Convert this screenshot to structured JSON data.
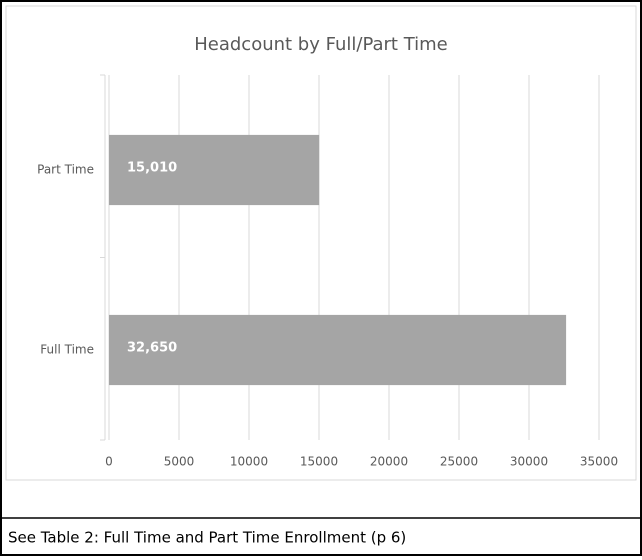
{
  "chart_data": {
    "type": "bar",
    "orientation": "horizontal",
    "title": "Headcount by Full/Part Time",
    "categories": [
      "Part Time",
      "Full Time"
    ],
    "values": [
      15010,
      32650
    ],
    "value_labels": [
      "15,010",
      "32,650"
    ],
    "color": "#a5a5a5",
    "xlim": [
      0,
      35000
    ],
    "xticks": [
      0,
      5000,
      10000,
      15000,
      20000,
      25000,
      30000,
      35000
    ],
    "grid": true
  },
  "caption": "See Table 2: Full Time and Part Time Enrollment (p 6)"
}
